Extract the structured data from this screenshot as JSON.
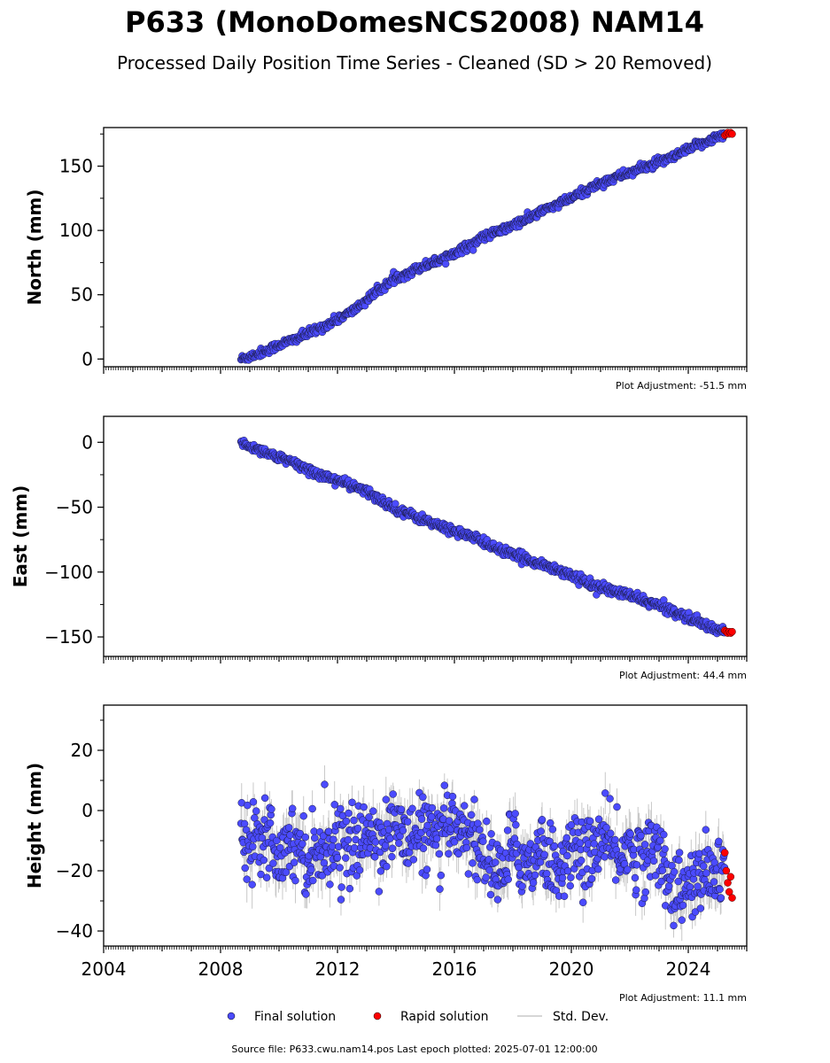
{
  "title": "P633 (MonoDomesNCS2008) NAM14",
  "subtitle": "Processed Daily Position Time Series - Cleaned (SD > 20 Removed)",
  "legend": {
    "final": "Final solution",
    "rapid": "Rapid solution",
    "std": "Std. Dev."
  },
  "source": "Source file: P633.cwu.nam14.pos  Last epoch plotted: 2025-07-01 12:00:00",
  "colors": {
    "final": "#4b4bff",
    "rapid": "#ff0000",
    "std": "#c8c8c8"
  },
  "chart_data": [
    {
      "type": "scatter",
      "ylabel": "North (mm)",
      "adjustment": "Plot Adjustment: -51.5 mm",
      "xlim": [
        2004,
        2026
      ],
      "ylim": [
        -6,
        180
      ],
      "yticks": [
        0,
        50,
        100,
        150
      ],
      "ytick_labels": [
        "0",
        "50",
        "100",
        "150"
      ],
      "xtick_labels": [],
      "series": [
        {
          "name": "Final solution",
          "x": [
            2008.7,
            2009.0,
            2009.5,
            2010.0,
            2010.5,
            2011.0,
            2011.5,
            2012.0,
            2012.5,
            2013.0,
            2013.5,
            2014.0,
            2014.5,
            2015.0,
            2015.5,
            2016.0,
            2016.5,
            2017.0,
            2017.5,
            2018.0,
            2018.5,
            2019.0,
            2019.5,
            2020.0,
            2020.5,
            2021.0,
            2021.5,
            2022.0,
            2022.5,
            2023.0,
            2023.5,
            2024.0,
            2024.5,
            2025.0
          ],
          "y": [
            0,
            2,
            6,
            11,
            15,
            20,
            25,
            31,
            37,
            46,
            55,
            63,
            68,
            73,
            77,
            83,
            88,
            95,
            99,
            104,
            109,
            115,
            120,
            125,
            131,
            137,
            141,
            145,
            149,
            153,
            157,
            163,
            168,
            173
          ]
        },
        {
          "name": "Rapid solution",
          "x": [
            2025.25,
            2025.3,
            2025.35,
            2025.4,
            2025.45,
            2025.5
          ],
          "y": [
            174,
            175,
            176,
            175,
            176,
            175
          ]
        }
      ]
    },
    {
      "type": "scatter",
      "ylabel": "East (mm)",
      "adjustment": "Plot Adjustment: 44.4 mm",
      "xlim": [
        2004,
        2026
      ],
      "ylim": [
        -165,
        20
      ],
      "yticks": [
        0,
        -50,
        -100,
        -150
      ],
      "ytick_labels": [
        "0",
        "−50",
        "−100",
        "−150"
      ],
      "xtick_labels": [],
      "series": [
        {
          "name": "Final solution",
          "x": [
            2008.7,
            2009.0,
            2009.5,
            2010.0,
            2010.5,
            2011.0,
            2011.5,
            2012.0,
            2012.5,
            2013.0,
            2013.5,
            2014.0,
            2014.5,
            2015.0,
            2015.5,
            2016.0,
            2016.5,
            2017.0,
            2017.5,
            2018.0,
            2018.5,
            2019.0,
            2019.5,
            2020.0,
            2020.5,
            2021.0,
            2021.5,
            2022.0,
            2022.5,
            2023.0,
            2023.5,
            2024.0,
            2024.5,
            2025.0
          ],
          "y": [
            0,
            -3,
            -7,
            -12,
            -16,
            -21,
            -26,
            -29,
            -34,
            -38,
            -45,
            -51,
            -56,
            -60,
            -65,
            -68,
            -72,
            -77,
            -82,
            -87,
            -90,
            -94,
            -98,
            -102,
            -108,
            -112,
            -115,
            -118,
            -122,
            -126,
            -130,
            -135,
            -140,
            -145
          ]
        },
        {
          "name": "Rapid solution",
          "x": [
            2025.25,
            2025.3,
            2025.35,
            2025.4,
            2025.45,
            2025.5
          ],
          "y": [
            -145,
            -146,
            -147,
            -146,
            -147,
            -146
          ]
        }
      ]
    },
    {
      "type": "scatter",
      "ylabel": "Height (mm)",
      "adjustment": "Plot Adjustment: 11.1 mm",
      "xlim": [
        2004,
        2026
      ],
      "ylim": [
        -45,
        35
      ],
      "yticks": [
        20,
        0,
        -20,
        -40
      ],
      "ytick_labels": [
        "20",
        "0",
        "−20",
        "−40"
      ],
      "xtick_values": [
        2004,
        2008,
        2012,
        2016,
        2020,
        2024
      ],
      "xtick_labels": [
        "2004",
        "2008",
        "2012",
        "2016",
        "2020",
        "2024"
      ],
      "series": [
        {
          "name": "Final solution",
          "x": [
            2008.7,
            2009.0,
            2009.5,
            2010.0,
            2010.5,
            2011.0,
            2011.5,
            2012.0,
            2012.5,
            2013.0,
            2013.5,
            2014.0,
            2014.5,
            2015.0,
            2015.5,
            2016.0,
            2016.5,
            2017.0,
            2017.5,
            2018.0,
            2018.5,
            2019.0,
            2019.5,
            2020.0,
            2020.5,
            2021.0,
            2021.5,
            2022.0,
            2022.5,
            2023.0,
            2023.5,
            2024.0,
            2024.5,
            2025.0
          ],
          "y": [
            -4,
            -10,
            -5,
            -14,
            -9,
            -16,
            -12,
            -10,
            -13,
            -8,
            -9,
            -5,
            -10,
            -6,
            -12,
            -2,
            -8,
            -14,
            -22,
            -12,
            -18,
            -12,
            -20,
            -13,
            -15,
            -10,
            -14,
            -13,
            -16,
            -12,
            -27,
            -26,
            -22,
            -21
          ]
        },
        {
          "name": "Rapid solution",
          "x": [
            2025.25,
            2025.3,
            2025.35,
            2025.4,
            2025.45,
            2025.5
          ],
          "y": [
            -14,
            -20,
            -24,
            -27,
            -22,
            -29
          ]
        }
      ]
    }
  ]
}
